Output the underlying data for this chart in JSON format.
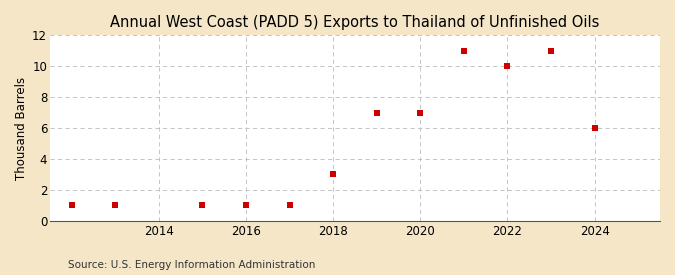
{
  "title": "Annual West Coast (PADD 5) Exports to Thailand of Unfinished Oils",
  "ylabel": "Thousand Barrels",
  "source": "Source: U.S. Energy Information Administration",
  "years": [
    2012,
    2013,
    2015,
    2016,
    2017,
    2018,
    2019,
    2020,
    2021,
    2022,
    2023,
    2024
  ],
  "values": [
    1,
    1,
    1,
    1,
    1,
    3,
    7,
    7,
    11,
    10,
    11,
    6
  ],
  "marker_color": "#cc0000",
  "marker": "s",
  "marker_size": 4,
  "figure_bg_color": "#f5e6c8",
  "plot_bg_color": "#ffffff",
  "grid_color": "#bbbbbb",
  "ylim": [
    0,
    12
  ],
  "yticks": [
    0,
    2,
    4,
    6,
    8,
    10,
    12
  ],
  "xticks": [
    2014,
    2016,
    2018,
    2020,
    2022,
    2024
  ],
  "xlim": [
    2011.5,
    2025.5
  ],
  "title_fontsize": 10.5,
  "label_fontsize": 8.5,
  "tick_fontsize": 8.5,
  "source_fontsize": 7.5
}
